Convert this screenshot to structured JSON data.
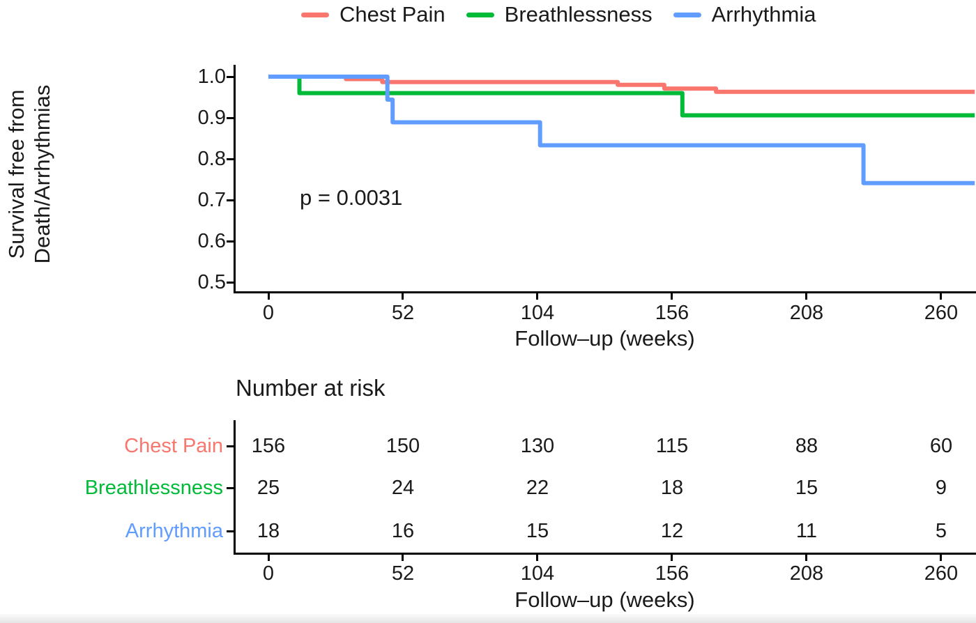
{
  "legend": {
    "items": [
      {
        "label": "Chest Pain",
        "color": "#F8766D"
      },
      {
        "label": "Breathlessness",
        "color": "#00BA38"
      },
      {
        "label": "Arrhythmia",
        "color": "#619CFF"
      }
    ]
  },
  "plot": {
    "ylabel_line1": "Survival free from",
    "ylabel_line2": "Death/Arrhythmias",
    "xlabel": "Follow–up (weeks)",
    "pvalue": "p = 0.0031",
    "ytick_labels": [
      "1.0",
      "0.9",
      "0.8",
      "0.7",
      "0.6",
      "0.5"
    ],
    "xtick_labels": [
      "0",
      "52",
      "104",
      "156",
      "208",
      "260"
    ]
  },
  "risk_table": {
    "title": "Number at risk",
    "xlabel": "Follow–up (weeks)",
    "xtick_labels": [
      "0",
      "52",
      "104",
      "156",
      "208",
      "260"
    ],
    "rows": [
      {
        "label": "Chest Pain",
        "color": "#F8766D",
        "values": [
          "156",
          "150",
          "130",
          "115",
          "88",
          "60"
        ]
      },
      {
        "label": "Breathlessness",
        "color": "#00BA38",
        "values": [
          "25",
          "24",
          "22",
          "18",
          "15",
          "9"
        ]
      },
      {
        "label": "Arrhythmia",
        "color": "#619CFF",
        "values": [
          "18",
          "16",
          "15",
          "12",
          "11",
          "5"
        ]
      }
    ]
  },
  "chart_data": {
    "type": "line",
    "subtype": "kaplan-meier-step",
    "title": "",
    "xlabel": "Follow–up (weeks)",
    "ylabel": "Survival free from Death/Arrhythmias",
    "xlim": [
      0,
      273
    ],
    "ylim": [
      0.475,
      1.03
    ],
    "xticks": [
      0,
      52,
      104,
      156,
      208,
      260
    ],
    "yticks": [
      1.0,
      0.9,
      0.8,
      0.7,
      0.6,
      0.5
    ],
    "grid": false,
    "legend_position": "top",
    "annotations": [
      {
        "text": "p = 0.0031"
      }
    ],
    "series": [
      {
        "name": "Chest Pain",
        "color": "#F8766D",
        "steps": [
          [
            0,
            1.0
          ],
          [
            30,
            1.0
          ],
          [
            30,
            0.994
          ],
          [
            44,
            0.994
          ],
          [
            44,
            0.987
          ],
          [
            135,
            0.987
          ],
          [
            135,
            0.98
          ],
          [
            153,
            0.98
          ],
          [
            153,
            0.971
          ],
          [
            173,
            0.971
          ],
          [
            173,
            0.963
          ],
          [
            273,
            0.963
          ]
        ]
      },
      {
        "name": "Breathlessness",
        "color": "#00BA38",
        "steps": [
          [
            0,
            1.0
          ],
          [
            12,
            1.0
          ],
          [
            12,
            0.96
          ],
          [
            160,
            0.96
          ],
          [
            160,
            0.906
          ],
          [
            273,
            0.906
          ]
        ]
      },
      {
        "name": "Arrhythmia",
        "color": "#619CFF",
        "steps": [
          [
            0,
            1.0
          ],
          [
            46,
            1.0
          ],
          [
            46,
            0.944
          ],
          [
            48,
            0.944
          ],
          [
            48,
            0.889
          ],
          [
            105,
            0.889
          ],
          [
            105,
            0.833
          ],
          [
            230,
            0.833
          ],
          [
            230,
            0.741
          ],
          [
            273,
            0.741
          ]
        ]
      }
    ],
    "number_at_risk": {
      "times": [
        0,
        52,
        104,
        156,
        208,
        260
      ],
      "groups": [
        {
          "name": "Chest Pain",
          "counts": [
            156,
            150,
            130,
            115,
            88,
            60
          ]
        },
        {
          "name": "Breathlessness",
          "counts": [
            25,
            24,
            22,
            18,
            15,
            9
          ]
        },
        {
          "name": "Arrhythmia",
          "counts": [
            18,
            16,
            15,
            12,
            11,
            5
          ]
        }
      ]
    }
  }
}
